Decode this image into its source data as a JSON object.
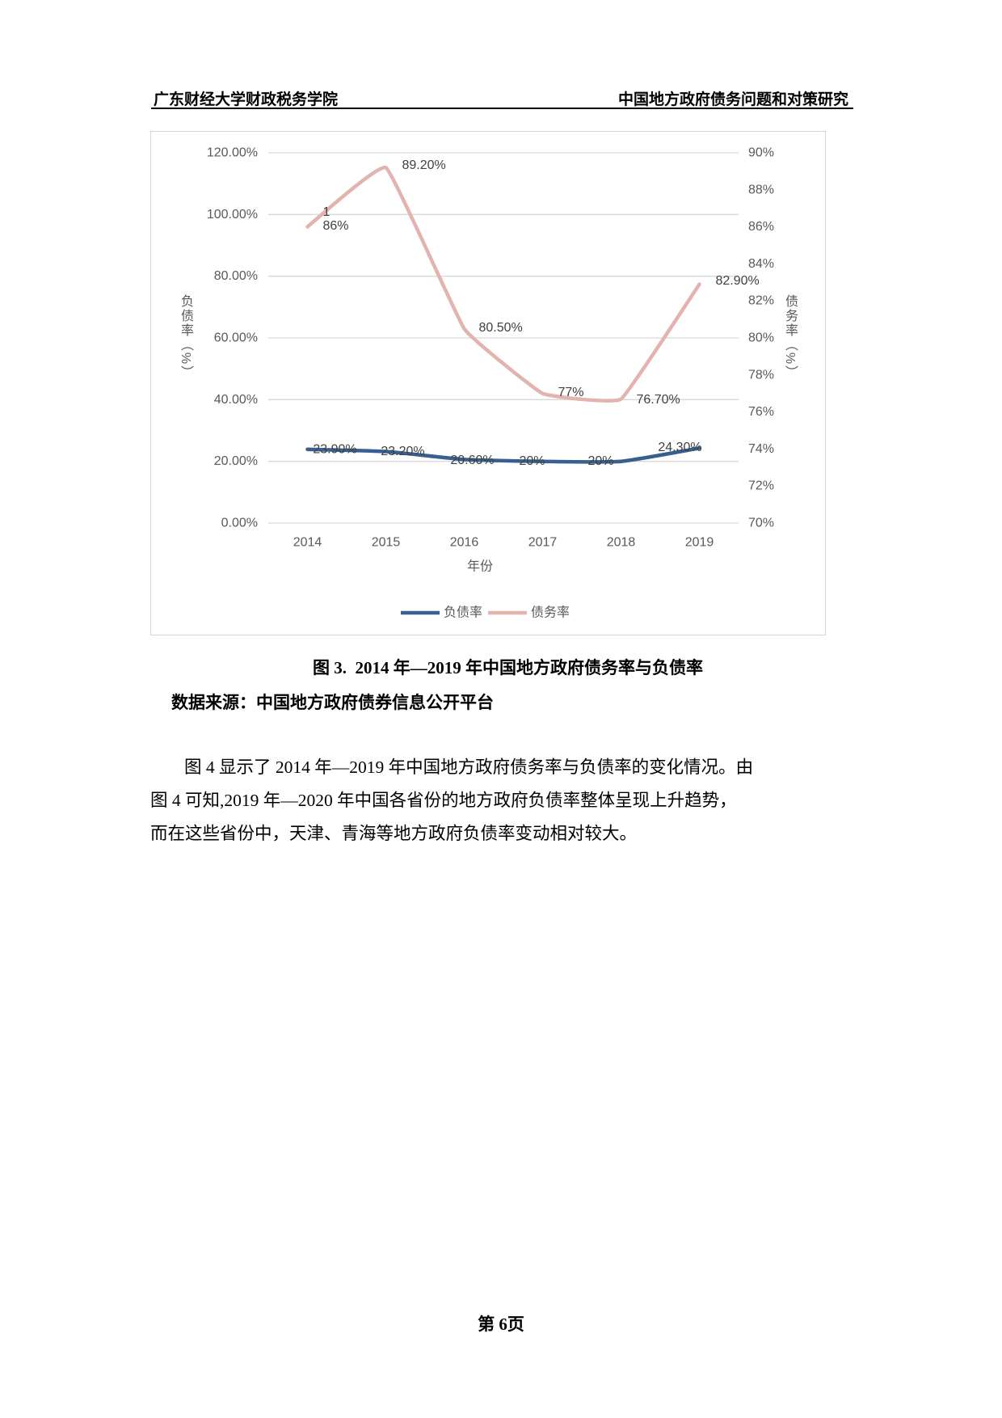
{
  "header": {
    "left": "广东财经大学财政税务学院",
    "right": "中国地方政府债务问题和对策研究"
  },
  "caption": "图 3.  2014 年—2019 年中国地方政府债务率与负债率",
  "source": "数据来源：中国地方政府债券信息公开平台",
  "paragraph": {
    "lines": [
      "图 4 显示了 2014 年—2019 年中国地方政府债务率与负债率的变化情况。由",
      "图 4 可知,2019 年—2020 年中国各省份的地方政府负债率整体呈现上升趋势，",
      "而在这些省份中，天津、青海等地方政府负债率变动相对较大。"
    ]
  },
  "footer": "第 6页",
  "chart_data": {
    "type": "line",
    "categories": [
      "2014",
      "2015",
      "2016",
      "2017",
      "2018",
      "2019"
    ],
    "x_axis_title": "年份",
    "left_axis": {
      "title": "负债率（%）",
      "min": 0,
      "max": 120,
      "ticks": [
        "0.00%",
        "20.00%",
        "40.00%",
        "60.00%",
        "80.00%",
        "100.00%",
        "120.00%"
      ]
    },
    "right_axis": {
      "title": "债务率（%）",
      "min": 70,
      "max": 90,
      "ticks": [
        "70%",
        "72%",
        "74%",
        "76%",
        "78%",
        "80%",
        "82%",
        "84%",
        "86%",
        "88%",
        "90%"
      ]
    },
    "series": [
      {
        "name": "负债率",
        "axis": "left",
        "color": "#376091",
        "values": [
          23.9,
          23.2,
          20.6,
          20,
          20,
          24.3
        ],
        "labels": [
          "23.90%",
          "23.20%",
          "20.60%",
          "20%",
          "20%",
          "24.30%"
        ]
      },
      {
        "name": "债务率",
        "axis": "right",
        "color": "#e2b3af",
        "values": [
          86,
          89.2,
          80.5,
          77,
          76.7,
          82.9
        ],
        "labels": [
          "1\n86%",
          "89.20%",
          "80.50%",
          "77%",
          "76.70%",
          "82.90%"
        ]
      }
    ],
    "legend": [
      "负债率",
      "债务率"
    ],
    "colors": {
      "gridline": "#d9d9d9",
      "axis_text": "#595959",
      "data_label": "#404040"
    }
  }
}
